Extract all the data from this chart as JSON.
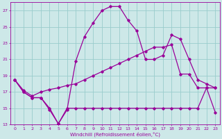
{
  "xlabel": "Windchill (Refroidissement éolien,°C)",
  "bg_color": "#cde8e8",
  "line_color": "#990099",
  "grid_color": "#99cccc",
  "xlim": [
    -0.5,
    23.5
  ],
  "ylim": [
    13,
    28
  ],
  "xticks": [
    0,
    1,
    2,
    3,
    4,
    5,
    6,
    7,
    8,
    9,
    10,
    11,
    12,
    13,
    14,
    15,
    16,
    17,
    18,
    19,
    20,
    21,
    22,
    23
  ],
  "yticks": [
    13,
    15,
    17,
    19,
    21,
    23,
    25,
    27
  ],
  "series": [
    [
      18.5,
      17.0,
      16.3,
      16.3,
      14.8,
      13.1,
      14.8,
      20.8,
      23.8,
      25.5,
      27.0,
      27.5,
      27.5,
      25.8,
      24.5,
      21.0,
      21.0,
      21.5,
      24.0,
      23.5,
      21.0,
      18.5,
      18.0,
      17.5
    ],
    [
      18.5,
      17.0,
      16.3,
      16.3,
      15.0,
      13.1,
      15.0,
      15.0,
      15.0,
      15.0,
      15.0,
      15.0,
      15.0,
      15.0,
      15.0,
      15.0,
      15.0,
      15.0,
      15.0,
      15.0,
      15.0,
      15.0,
      17.5,
      14.5
    ],
    [
      18.5,
      17.2,
      16.5,
      17.0,
      17.3,
      17.5,
      17.8,
      18.0,
      18.5,
      19.0,
      19.5,
      20.0,
      20.5,
      21.0,
      21.5,
      22.0,
      22.5,
      22.5,
      22.8,
      19.2,
      19.2,
      17.5,
      17.5,
      17.5
    ]
  ]
}
